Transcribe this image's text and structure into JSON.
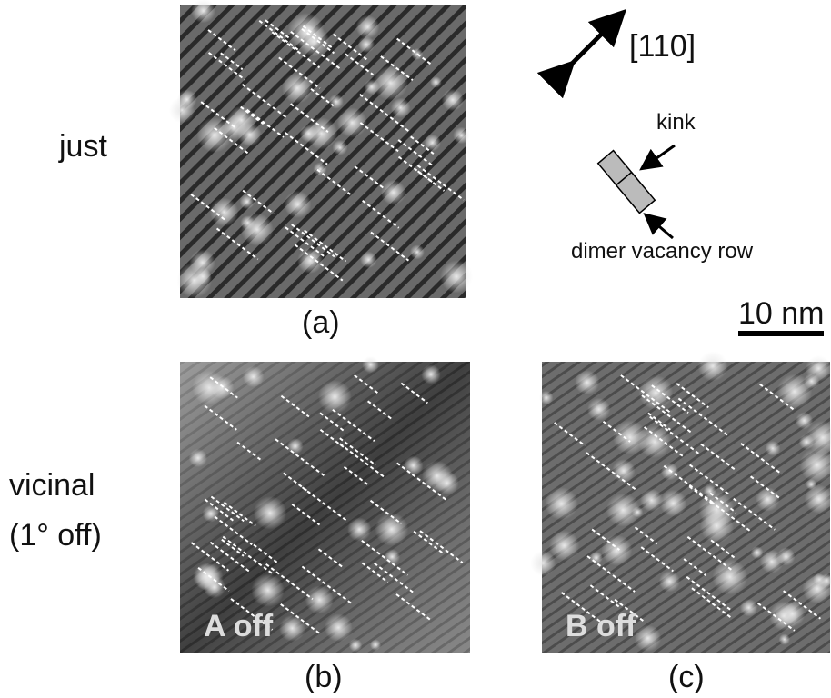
{
  "row_labels": {
    "just": "just",
    "vicinal": "vicinal",
    "vicinal_note": "(1° off)"
  },
  "panels": [
    {
      "label": "(a)",
      "inset": null
    },
    {
      "label": "(b)",
      "inset": "A off"
    },
    {
      "label": "(c)",
      "inset": "B off"
    }
  ],
  "legend": {
    "direction": "[110]",
    "kink": "kink",
    "row": "dimer vacancy row",
    "scale": "10 nm"
  }
}
